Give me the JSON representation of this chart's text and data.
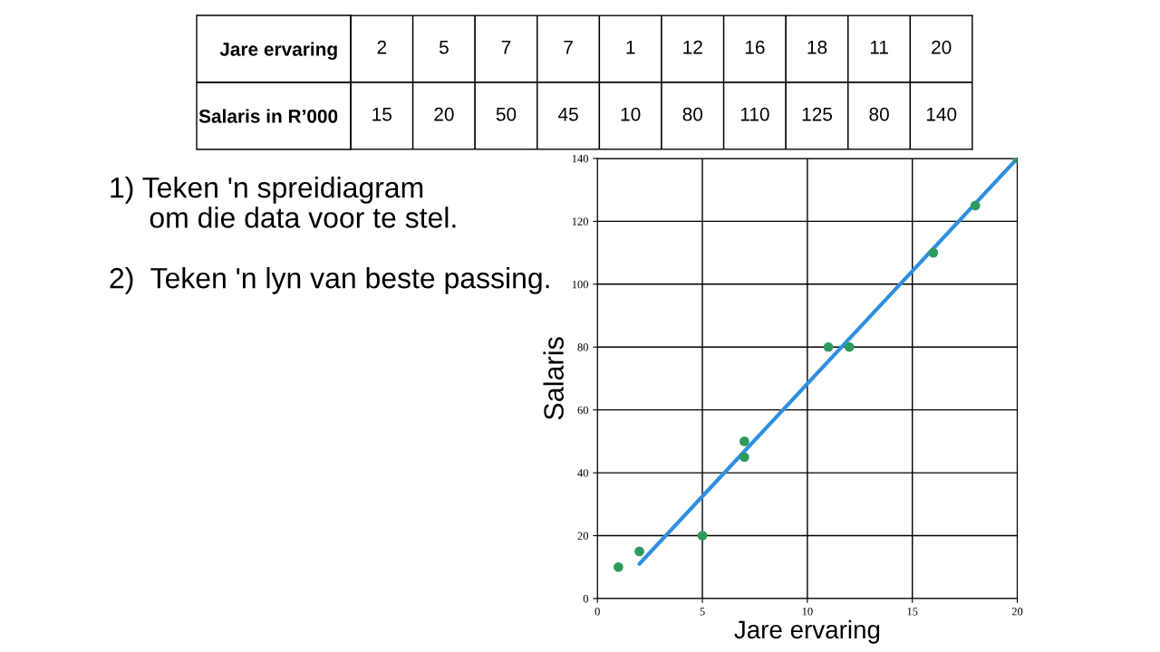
{
  "chart_data": [
    {
      "type": "other",
      "categories": [
        null,
        null,
        null,
        null,
        null,
        null,
        null,
        null,
        null,
        null
      ],
      "y_categories": [
        "Jare ervaring",
        "Salaris in R’000"
      ],
      "cell_labels": [
        [
          "2",
          "5",
          "7",
          "7",
          "1",
          "12",
          "16",
          "18",
          "11",
          "20"
        ],
        [
          "15",
          "20",
          "50",
          "45",
          "10",
          "80",
          "110",
          "125",
          "80",
          "140"
        ]
      ]
    },
    {
      "type": "scatter",
      "xlabel": "Jare ervaring",
      "ylabel": "Salaris",
      "x": [
        2,
        5,
        7,
        7,
        1,
        12,
        16,
        18,
        11,
        20
      ],
      "series": [
        {
          "type": "scatter",
          "color": "#2e9a5e",
          "marker": "circle",
          "values": [
            15,
            20,
            50,
            45,
            10,
            80,
            110,
            125,
            80,
            140
          ]
        },
        {
          "type": "line",
          "color": "#2f8fe0",
          "x": [
            2,
            20
          ],
          "values": [
            11,
            140
          ]
        }
      ],
      "xlim": [
        0,
        20
      ],
      "xticks": [
        0,
        5,
        10,
        15,
        20
      ],
      "ylim": [
        0,
        140
      ],
      "yticks": [
        0,
        20,
        40,
        60,
        80,
        100,
        120,
        140
      ],
      "grid": true,
      "annotations": [
        "1) Teken 'n spreidiagram\n     om die data voor te stel.",
        "2)  Teken 'n lyn van beste passing."
      ]
    }
  ]
}
